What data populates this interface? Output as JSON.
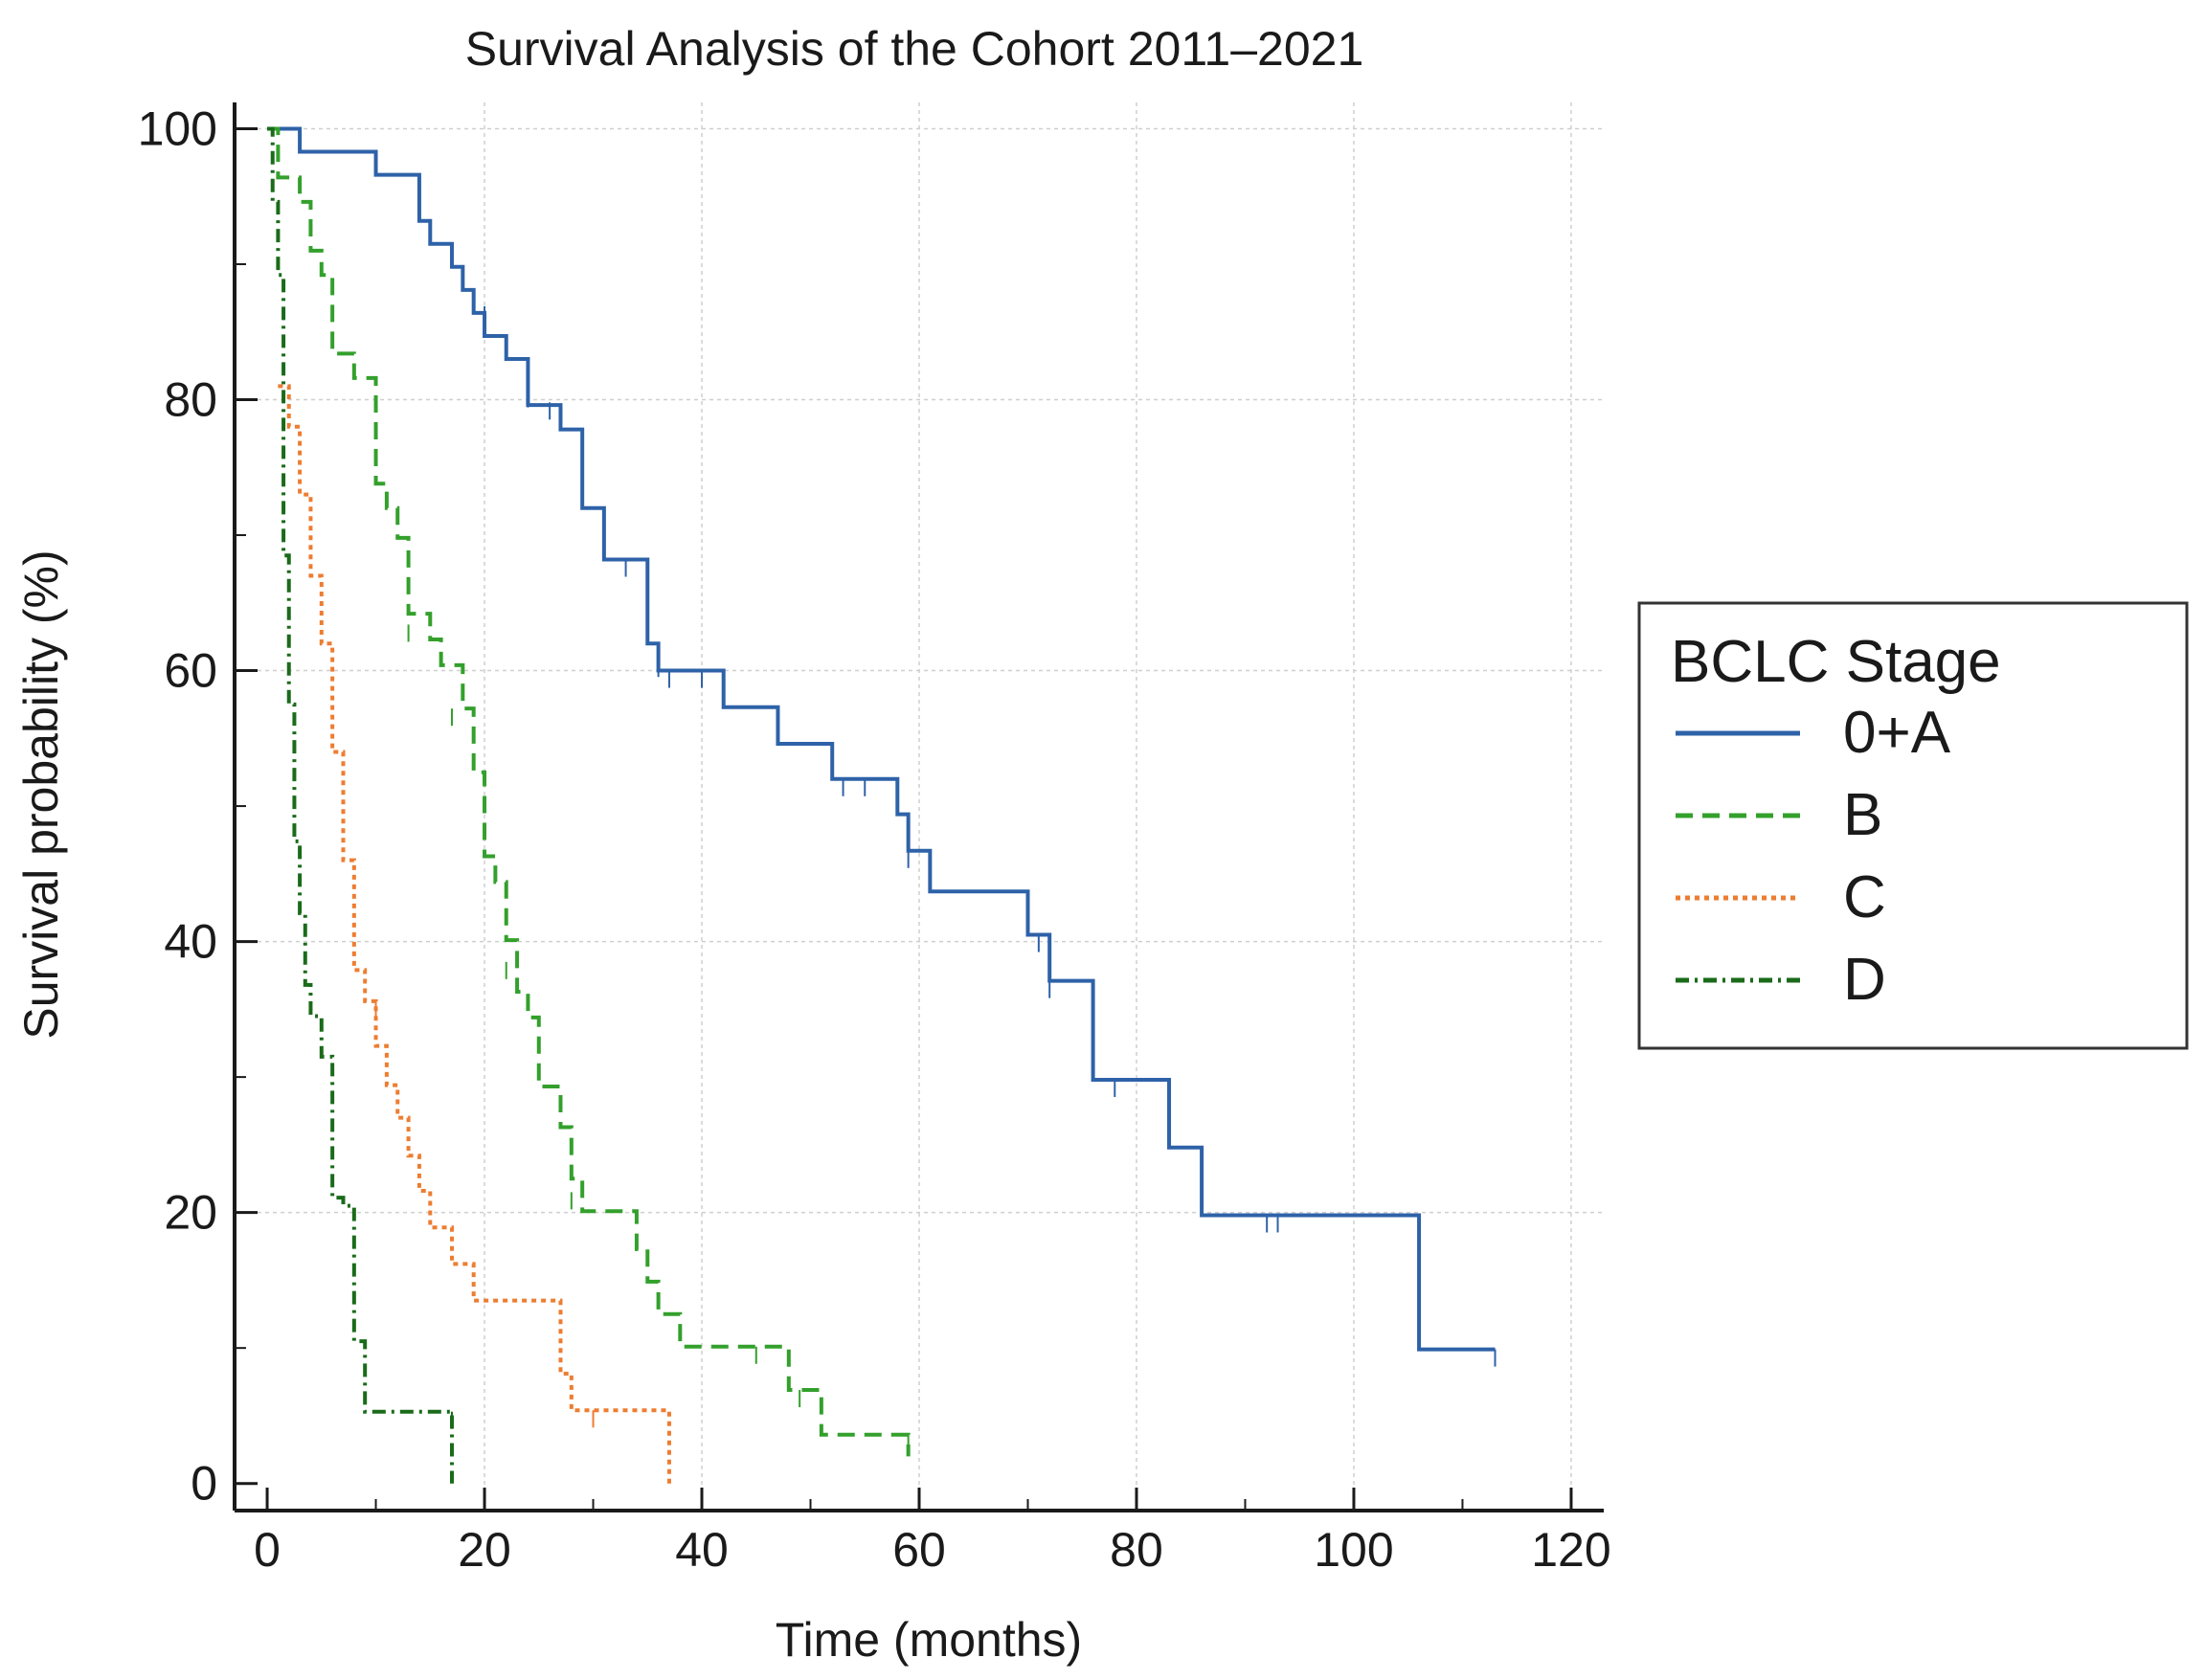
{
  "chart_data": {
    "type": "line",
    "subtype": "kaplan-meier",
    "title": "Survival Analysis of the Cohort 2011–2021",
    "xlabel": "Time (months)",
    "ylabel": "Survival probability (%)",
    "xlim": [
      -3,
      123
    ],
    "ylim": [
      -2,
      103
    ],
    "xticks": [
      0,
      20,
      40,
      60,
      80,
      100,
      120
    ],
    "yticks": [
      0,
      20,
      40,
      60,
      80,
      100
    ],
    "grid": true,
    "legend": {
      "title": "BCLC Stage",
      "position": "right"
    },
    "series": [
      {
        "name": "0+A",
        "color": "#2e62a8",
        "style": "solid",
        "steps": [
          [
            0,
            100
          ],
          [
            3,
            98.3
          ],
          [
            10,
            96.6
          ],
          [
            14,
            93.2
          ],
          [
            15,
            91.5
          ],
          [
            17,
            89.8
          ],
          [
            18,
            88.1
          ],
          [
            19,
            86.4
          ],
          [
            20,
            84.7
          ],
          [
            22,
            83
          ],
          [
            24,
            79.6
          ],
          [
            27,
            77.8
          ],
          [
            29,
            72
          ],
          [
            31,
            68.2
          ],
          [
            35,
            62
          ],
          [
            36,
            60
          ],
          [
            42,
            57.3
          ],
          [
            47,
            54.6
          ],
          [
            52,
            52
          ],
          [
            58,
            49.4
          ],
          [
            59,
            46.7
          ],
          [
            61,
            43.7
          ],
          [
            70,
            40.5
          ],
          [
            72,
            37.1
          ],
          [
            76,
            29.8
          ],
          [
            83,
            24.8
          ],
          [
            86,
            19.8
          ],
          [
            106,
            9.9
          ],
          [
            113,
            9.9
          ]
        ],
        "censored": [
          [
            14,
            95.6
          ],
          [
            20,
            86.9
          ],
          [
            24,
            80.7
          ],
          [
            26,
            79.8
          ],
          [
            33,
            68.2
          ],
          [
            36,
            60.8
          ],
          [
            37,
            60
          ],
          [
            40,
            60
          ],
          [
            47,
            56.3
          ],
          [
            53,
            52
          ],
          [
            55,
            52
          ],
          [
            59,
            46.7
          ],
          [
            70,
            43.7
          ],
          [
            71,
            40.5
          ],
          [
            72,
            37.1
          ],
          [
            78,
            29.8
          ],
          [
            83,
            29.8
          ],
          [
            92,
            19.8
          ],
          [
            93,
            19.8
          ],
          [
            113,
            9.9
          ]
        ]
      },
      {
        "name": "B",
        "color": "#33a02c",
        "style": "dashed",
        "steps": [
          [
            0,
            100
          ],
          [
            1,
            96.4
          ],
          [
            3,
            94.6
          ],
          [
            4,
            91
          ],
          [
            5,
            89.2
          ],
          [
            6,
            83.4
          ],
          [
            8,
            81.6
          ],
          [
            10,
            73.8
          ],
          [
            11,
            72
          ],
          [
            12,
            69.8
          ],
          [
            13,
            64.2
          ],
          [
            15,
            62.3
          ],
          [
            16,
            60.4
          ],
          [
            18,
            57.2
          ],
          [
            19,
            52.5
          ],
          [
            20,
            46.3
          ],
          [
            21,
            44.4
          ],
          [
            22,
            40.1
          ],
          [
            23,
            36.3
          ],
          [
            24,
            34.4
          ],
          [
            25,
            29.3
          ],
          [
            27,
            26.3
          ],
          [
            28,
            22.5
          ],
          [
            29,
            20.1
          ],
          [
            34,
            17.3
          ],
          [
            35,
            14.9
          ],
          [
            36,
            12.5
          ],
          [
            38,
            10.1
          ],
          [
            48,
            6.9
          ],
          [
            51,
            3.6
          ],
          [
            59,
            2
          ]
        ],
        "censored": [
          [
            13,
            63.4
          ],
          [
            17,
            57.2
          ],
          [
            22,
            38.5
          ],
          [
            28,
            21.5
          ],
          [
            45,
            10.1
          ],
          [
            49,
            6.9
          ],
          [
            59,
            3.6
          ]
        ]
      },
      {
        "name": "C",
        "color": "#ed7d31",
        "style": "dotted",
        "steps": [
          [
            1,
            81
          ],
          [
            2,
            78
          ],
          [
            3,
            73
          ],
          [
            4,
            67
          ],
          [
            5,
            62
          ],
          [
            6,
            54
          ],
          [
            7,
            46
          ],
          [
            8,
            37.9
          ],
          [
            9,
            35.6
          ],
          [
            10,
            32.3
          ],
          [
            11,
            29.4
          ],
          [
            12,
            27
          ],
          [
            13,
            24.2
          ],
          [
            14,
            21.6
          ],
          [
            15,
            18.9
          ],
          [
            17,
            16.2
          ],
          [
            19,
            13.5
          ],
          [
            27,
            8.1
          ],
          [
            28,
            5.4
          ],
          [
            37,
            0
          ]
        ],
        "censored": [
          [
            10,
            35.6
          ],
          [
            30,
            5.4
          ]
        ]
      },
      {
        "name": "D",
        "color": "#1a6b1a",
        "style": "dashdot",
        "steps": [
          [
            0,
            100
          ],
          [
            0.5,
            94.6
          ],
          [
            1,
            89.2
          ],
          [
            1.5,
            68.5
          ],
          [
            2,
            57.5
          ],
          [
            2.5,
            47.4
          ],
          [
            3,
            42.1
          ],
          [
            3.5,
            36.8
          ],
          [
            4,
            34.5
          ],
          [
            5,
            31.5
          ],
          [
            6,
            21.1
          ],
          [
            7,
            20.5
          ],
          [
            8,
            10.5
          ],
          [
            9,
            5.3
          ],
          [
            17,
            0
          ]
        ],
        "censored": [
          [
            17,
            5.3
          ]
        ]
      }
    ]
  }
}
